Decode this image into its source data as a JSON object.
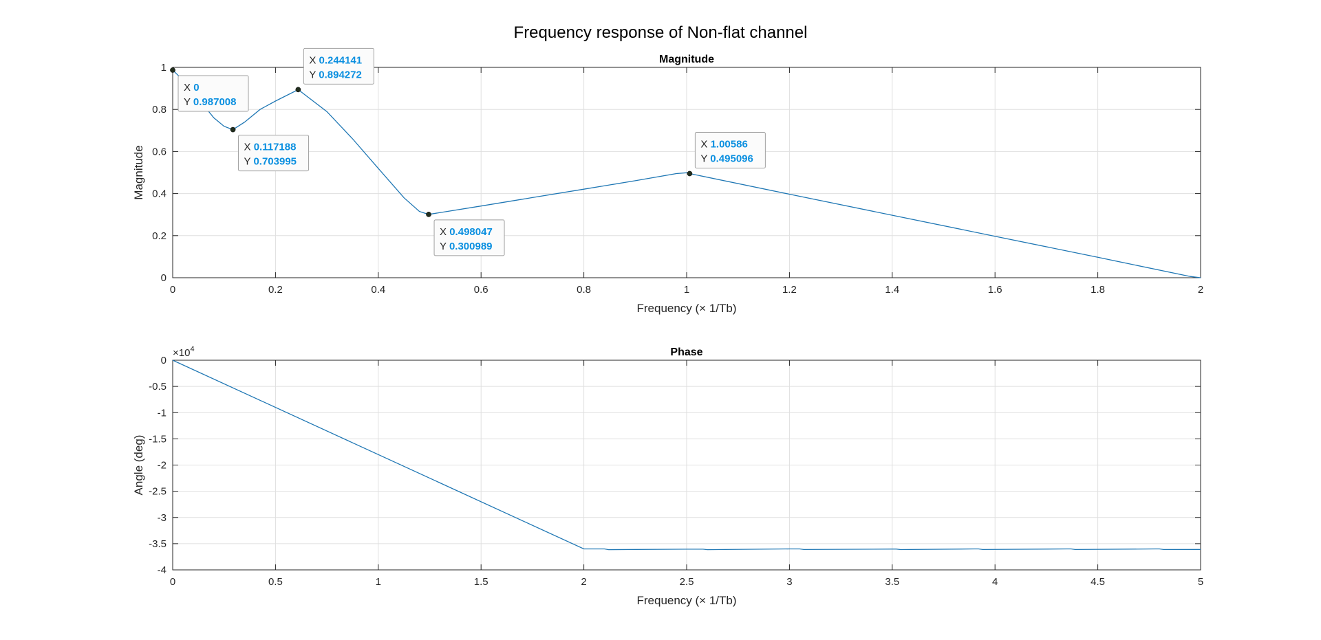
{
  "figure": {
    "title": "Frequency response of Non-flat channel"
  },
  "chart_data": [
    {
      "type": "line",
      "title": "Magnitude",
      "xlabel": "Frequency (× 1/Tb)",
      "ylabel": "Magnitude",
      "xlim": [
        0,
        2
      ],
      "ylim": [
        0,
        1
      ],
      "xticks": [
        0,
        0.2,
        0.4,
        0.6,
        0.8,
        1,
        1.2,
        1.4,
        1.6,
        1.8,
        2
      ],
      "xtick_labels": [
        "0",
        "0.2",
        "0.4",
        "0.6",
        "0.8",
        "1",
        "1.2",
        "1.4",
        "1.6",
        "1.8",
        "2"
      ],
      "yticks": [
        0,
        0.2,
        0.4,
        0.6,
        0.8,
        1
      ],
      "ytick_labels": [
        "0",
        "0.2",
        "0.4",
        "0.6",
        "0.8",
        "1"
      ],
      "grid": true,
      "series": [
        {
          "x": [
            0,
            0.02,
            0.05,
            0.08,
            0.1,
            0.117188,
            0.14,
            0.17,
            0.2,
            0.244141,
            0.3,
            0.35,
            0.4,
            0.45,
            0.48,
            0.498047,
            0.6,
            0.7,
            0.8,
            0.9,
            0.98,
            1.0,
            1.00586,
            1.2,
            1.4,
            1.6,
            1.8,
            1.98,
            2.0
          ],
          "y": [
            0.987008,
            0.94,
            0.85,
            0.76,
            0.72,
            0.703995,
            0.74,
            0.8,
            0.84,
            0.894272,
            0.79,
            0.66,
            0.52,
            0.38,
            0.315,
            0.300989,
            0.341,
            0.381,
            0.421,
            0.461,
            0.495,
            0.499,
            0.495096,
            0.397,
            0.297,
            0.197,
            0.097,
            0.006,
            0.0
          ]
        }
      ],
      "datatips": [
        {
          "x": "0",
          "y": "0.987008",
          "xv": 0,
          "yv": 0.987008,
          "anchor": "below-right"
        },
        {
          "x": "0.117188",
          "y": "0.703995",
          "xv": 0.117188,
          "yv": 0.703995,
          "anchor": "below-right"
        },
        {
          "x": "0.244141",
          "y": "0.894272",
          "xv": 0.244141,
          "yv": 0.894272,
          "anchor": "above-right"
        },
        {
          "x": "0.498047",
          "y": "0.300989",
          "xv": 0.498047,
          "yv": 0.300989,
          "anchor": "below-right"
        },
        {
          "x": "1.00586",
          "y": "0.495096",
          "xv": 1.00586,
          "yv": 0.495096,
          "anchor": "above-right"
        }
      ]
    },
    {
      "type": "line",
      "title": "Phase",
      "xlabel": "Frequency (× 1/Tb)",
      "ylabel": "Angle (deg)",
      "y_exponent": "×10",
      "y_exponent_power": "4",
      "xlim": [
        0,
        5
      ],
      "ylim": [
        -4,
        0
      ],
      "xticks": [
        0,
        0.5,
        1,
        1.5,
        2,
        2.5,
        3,
        3.5,
        4,
        4.5,
        5
      ],
      "xtick_labels": [
        "0",
        "0.5",
        "1",
        "1.5",
        "2",
        "2.5",
        "3",
        "3.5",
        "4",
        "4.5",
        "5"
      ],
      "yticks": [
        0,
        -0.5,
        -1,
        -1.5,
        -2,
        -2.5,
        -3,
        -3.5,
        -4
      ],
      "ytick_labels": [
        "0",
        "-0.5",
        "-1",
        "-1.5",
        "-2",
        "-2.5",
        "-3",
        "-3.5",
        "-4"
      ],
      "grid": true,
      "series": [
        {
          "x": [
            0,
            2.0,
            2.1,
            2.12,
            2.5,
            2.58,
            2.6,
            3.0,
            3.05,
            3.07,
            3.5,
            3.52,
            3.54,
            3.9,
            3.92,
            3.94,
            4.35,
            4.37,
            4.39,
            4.78,
            4.8,
            4.82,
            5.0
          ],
          "y": [
            0,
            -3.6,
            -3.6,
            -3.615,
            -3.605,
            -3.605,
            -3.615,
            -3.6,
            -3.6,
            -3.612,
            -3.603,
            -3.603,
            -3.613,
            -3.6,
            -3.6,
            -3.612,
            -3.6,
            -3.6,
            -3.612,
            -3.6,
            -3.6,
            -3.612,
            -3.61
          ]
        }
      ]
    }
  ]
}
